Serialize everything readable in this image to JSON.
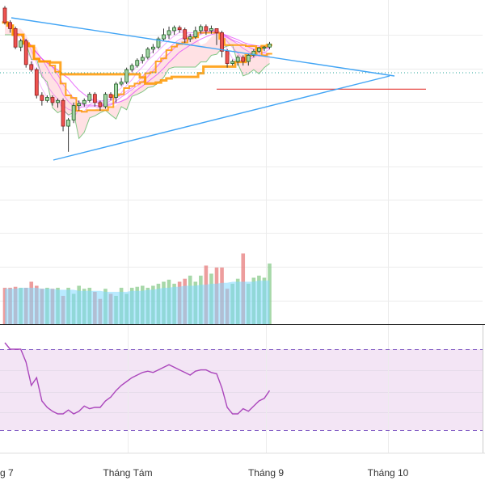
{
  "chart_data": {
    "type": "candlestick",
    "title": "",
    "x_tick_labels": [
      "g 7",
      "Tháng Tám",
      "Tháng 9",
      "Tháng 10"
    ],
    "colors": {
      "up": "#26a69a",
      "down": "#ef5350",
      "triangle": "#42a5f5",
      "moving_averages": "#e040fb",
      "tenkan": "#ff9800",
      "kijun": "#ff9800",
      "cloud_fill": "#ffcdd2",
      "cloud_edge": "#81c784",
      "horizontal_level": "#e53935",
      "last_price_line": "#26a69a",
      "volume_ma_area": "#80d8ff",
      "oscillator_line": "#ab47bc",
      "oscillator_band": "#f3e5f5"
    },
    "candles": [
      [
        100,
        86,
        102,
        84
      ],
      [
        86,
        80,
        88,
        76
      ],
      [
        80,
        62,
        82,
        60
      ],
      [
        62,
        68,
        70,
        58
      ],
      [
        68,
        45,
        70,
        42
      ],
      [
        45,
        40,
        48,
        38
      ],
      [
        40,
        15,
        42,
        12
      ],
      [
        15,
        10,
        18,
        5
      ],
      [
        10,
        13,
        15,
        8
      ],
      [
        13,
        8,
        15,
        5
      ],
      [
        8,
        10,
        12,
        3
      ],
      [
        10,
        -15,
        12,
        -20
      ],
      [
        -15,
        -9,
        -7,
        -40
      ],
      [
        -9,
        5,
        8,
        -12
      ],
      [
        5,
        7,
        10,
        0
      ],
      [
        7,
        10,
        12,
        4
      ],
      [
        10,
        16,
        18,
        8
      ],
      [
        16,
        8,
        18,
        4
      ],
      [
        8,
        4,
        10,
        0
      ],
      [
        4,
        16,
        18,
        2
      ],
      [
        16,
        13,
        18,
        10
      ],
      [
        13,
        26,
        28,
        8
      ],
      [
        26,
        28,
        32,
        24
      ],
      [
        28,
        40,
        42,
        26
      ],
      [
        40,
        44,
        46,
        38
      ],
      [
        44,
        49,
        51,
        42
      ],
      [
        49,
        52,
        55,
        46
      ],
      [
        52,
        60,
        62,
        50
      ],
      [
        60,
        62,
        65,
        56
      ],
      [
        62,
        70,
        72,
        60
      ],
      [
        70,
        74,
        80,
        68
      ],
      [
        74,
        78,
        82,
        70
      ],
      [
        78,
        81,
        83,
        74
      ],
      [
        81,
        79,
        83,
        76
      ],
      [
        79,
        70,
        81,
        66
      ],
      [
        70,
        72,
        75,
        67
      ],
      [
        72,
        78,
        82,
        70
      ],
      [
        78,
        82,
        84,
        75
      ],
      [
        82,
        78,
        84,
        74
      ],
      [
        78,
        80,
        83,
        75
      ],
      [
        80,
        76,
        80,
        64
      ],
      [
        76,
        58,
        78,
        52
      ],
      [
        58,
        46,
        60,
        42
      ],
      [
        46,
        48,
        50,
        44
      ],
      [
        48,
        52,
        54,
        44
      ],
      [
        52,
        48,
        54,
        44
      ],
      [
        48,
        54,
        56,
        44
      ],
      [
        54,
        58,
        60,
        52
      ],
      [
        58,
        61,
        62,
        56
      ],
      [
        61,
        62,
        63,
        58
      ],
      [
        62,
        65,
        67,
        60
      ]
    ],
    "volumes": [
      36,
      36,
      37,
      36,
      36,
      42,
      38,
      35,
      36,
      35,
      36,
      28,
      36,
      30,
      38,
      35,
      36,
      32,
      25,
      35,
      30,
      28,
      36,
      30,
      36,
      37,
      38,
      36,
      38,
      40,
      42,
      44,
      40,
      42,
      45,
      48,
      42,
      48,
      58,
      50,
      56,
      56,
      35,
      40,
      45,
      70,
      40,
      46,
      48,
      46,
      60
    ],
    "volume_ma": [
      35,
      35,
      35,
      36,
      36,
      36,
      36,
      35,
      35,
      35,
      34,
      34,
      34,
      34,
      33,
      33,
      33,
      33,
      33,
      32,
      32,
      32,
      32,
      32,
      33,
      33,
      33,
      34,
      34,
      35,
      36,
      36,
      37,
      37,
      38,
      38,
      38,
      39,
      39,
      40,
      40,
      41,
      41,
      42,
      42,
      42,
      42,
      42,
      43,
      43,
      43
    ],
    "rsi": [
      85,
      80,
      80,
      80,
      70,
      52,
      58,
      40,
      35,
      32,
      30,
      30,
      33,
      30,
      32,
      36,
      34,
      35,
      35,
      40,
      43,
      48,
      52,
      55,
      58,
      60,
      62,
      63,
      62,
      64,
      66,
      68,
      66,
      64,
      62,
      60,
      63,
      64,
      64,
      62,
      61,
      50,
      35,
      30,
      30,
      34,
      32,
      36,
      40,
      42,
      48
    ]
  }
}
